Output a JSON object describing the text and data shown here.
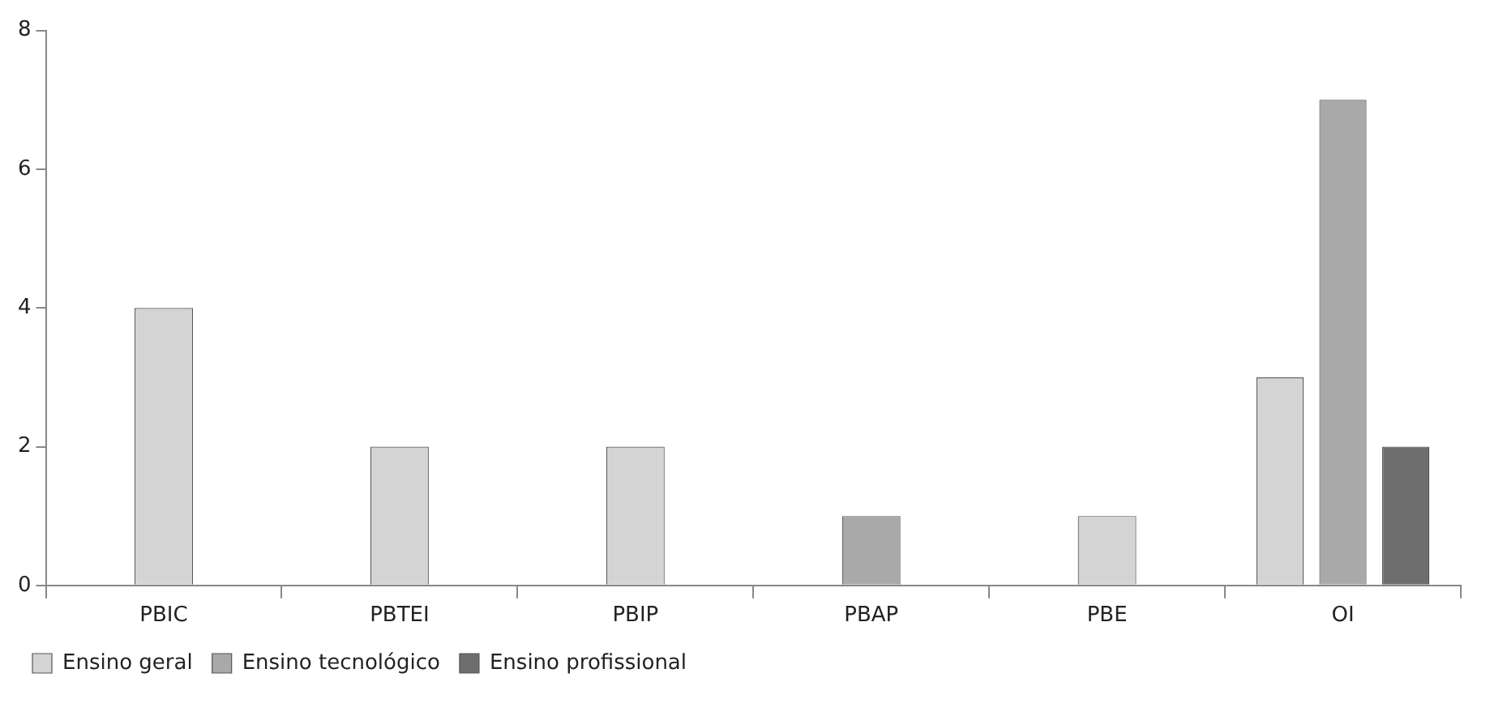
{
  "chart_data": {
    "type": "bar",
    "categories": [
      "PBIC",
      "PBTEI",
      "PBIP",
      "PBAP",
      "PBE",
      "OI"
    ],
    "series": [
      {
        "name": "Ensino geral",
        "color": "#d4d4d4",
        "values": [
          4,
          2,
          2,
          null,
          1,
          3
        ]
      },
      {
        "name": "Ensino tecnológico",
        "color": "#a9a9a9",
        "values": [
          null,
          null,
          null,
          1,
          null,
          7
        ]
      },
      {
        "name": "Ensino profissional",
        "color": "#6e6e6e",
        "values": [
          null,
          null,
          null,
          null,
          null,
          2
        ]
      }
    ],
    "ylim": [
      0,
      8
    ],
    "yticks": [
      0,
      2,
      4,
      6,
      8
    ],
    "grid": false,
    "legend": "bottom left"
  }
}
